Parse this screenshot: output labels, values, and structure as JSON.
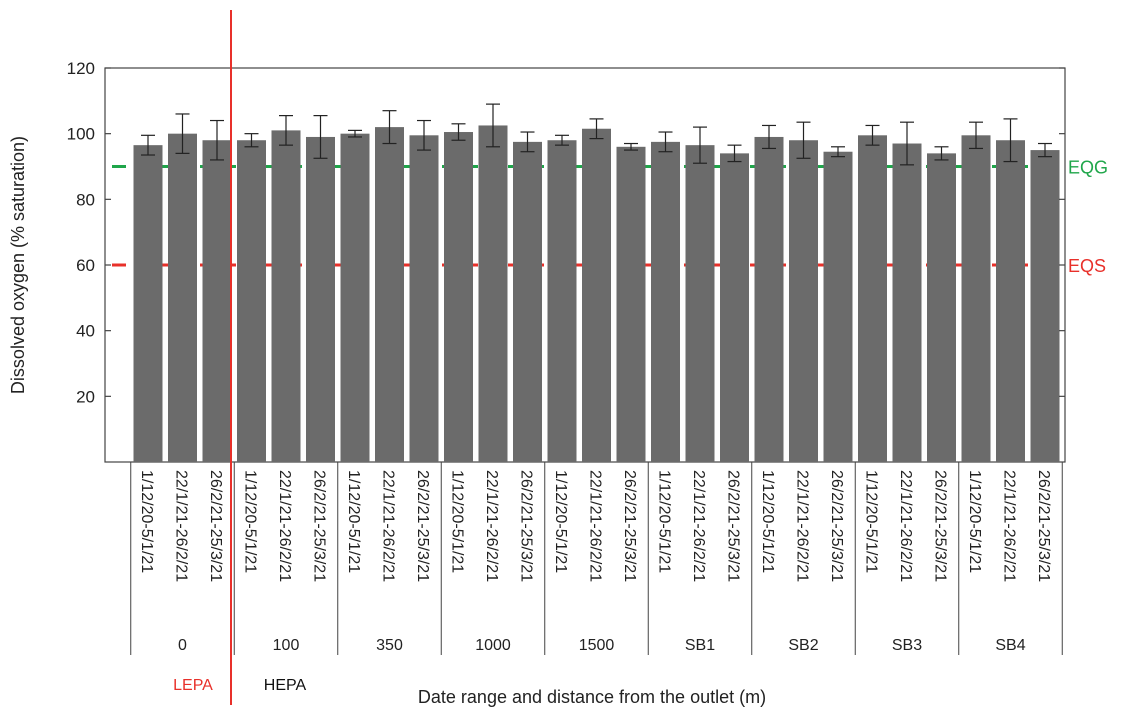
{
  "chart_data": {
    "type": "bar",
    "ylabel": "Dissolved oxygen (% saturation)",
    "xlabel": "Date range and distance from the outlet (m)",
    "ylim": [
      0,
      120
    ],
    "yticks": [
      20,
      40,
      60,
      80,
      100,
      120
    ],
    "bar_color": "#6b6b6b",
    "groups": [
      {
        "label": "0",
        "categories": [
          "1/12/20-5/1/21",
          "22/1/21-26/2/21",
          "26/2/21-25/3/21"
        ],
        "values": [
          96.5,
          100,
          98
        ],
        "errors": [
          3,
          6,
          6
        ]
      },
      {
        "label": "100",
        "categories": [
          "1/12/20-5/1/21",
          "22/1/21-26/2/21",
          "26/2/21-25/3/21"
        ],
        "values": [
          98,
          101,
          99
        ],
        "errors": [
          2,
          4.5,
          6.5
        ]
      },
      {
        "label": "350",
        "categories": [
          "1/12/20-5/1/21",
          "22/1/21-26/2/21",
          "26/2/21-25/3/21"
        ],
        "values": [
          100,
          102,
          99.5
        ],
        "errors": [
          1,
          5,
          4.5
        ]
      },
      {
        "label": "1000",
        "categories": [
          "1/12/20-5/1/21",
          "22/1/21-26/2/21",
          "26/2/21-25/3/21"
        ],
        "values": [
          100.5,
          102.5,
          97.5
        ],
        "errors": [
          2.5,
          6.5,
          3
        ]
      },
      {
        "label": "1500",
        "categories": [
          "1/12/20-5/1/21",
          "22/1/21-26/2/21",
          "26/2/21-25/3/21"
        ],
        "values": [
          98,
          101.5,
          96
        ],
        "errors": [
          1.5,
          3,
          1
        ]
      },
      {
        "label": "SB1",
        "categories": [
          "1/12/20-5/1/21",
          "22/1/21-26/2/21",
          "26/2/21-25/3/21"
        ],
        "values": [
          97.5,
          96.5,
          94
        ],
        "errors": [
          3,
          5.5,
          2.5
        ]
      },
      {
        "label": "SB2",
        "categories": [
          "1/12/20-5/1/21",
          "22/1/21-26/2/21",
          "26/2/21-25/3/21"
        ],
        "values": [
          99,
          98,
          94.5
        ],
        "errors": [
          3.5,
          5.5,
          1.5
        ]
      },
      {
        "label": "SB3",
        "categories": [
          "1/12/20-5/1/21",
          "22/1/21-26/2/21",
          "26/2/21-25/3/21"
        ],
        "values": [
          99.5,
          97,
          94
        ],
        "errors": [
          3,
          6.5,
          2
        ]
      },
      {
        "label": "SB4",
        "categories": [
          "1/12/20-5/1/21",
          "22/1/21-26/2/21",
          "26/2/21-25/3/21"
        ],
        "values": [
          99.5,
          98,
          95
        ],
        "errors": [
          4,
          6.5,
          2
        ]
      }
    ],
    "reference_lines": [
      {
        "name": "EQG",
        "value": 90,
        "color": "#1fa64a",
        "style": "dashed"
      },
      {
        "name": "EQS",
        "value": 60,
        "color": "#e8302a",
        "style": "dashed"
      }
    ],
    "zones": {
      "divider_color": "#e8302a",
      "left": {
        "label": "LEPA",
        "color": "#e8302a"
      },
      "right": {
        "label": "HEPA",
        "color": "#111111"
      }
    }
  }
}
